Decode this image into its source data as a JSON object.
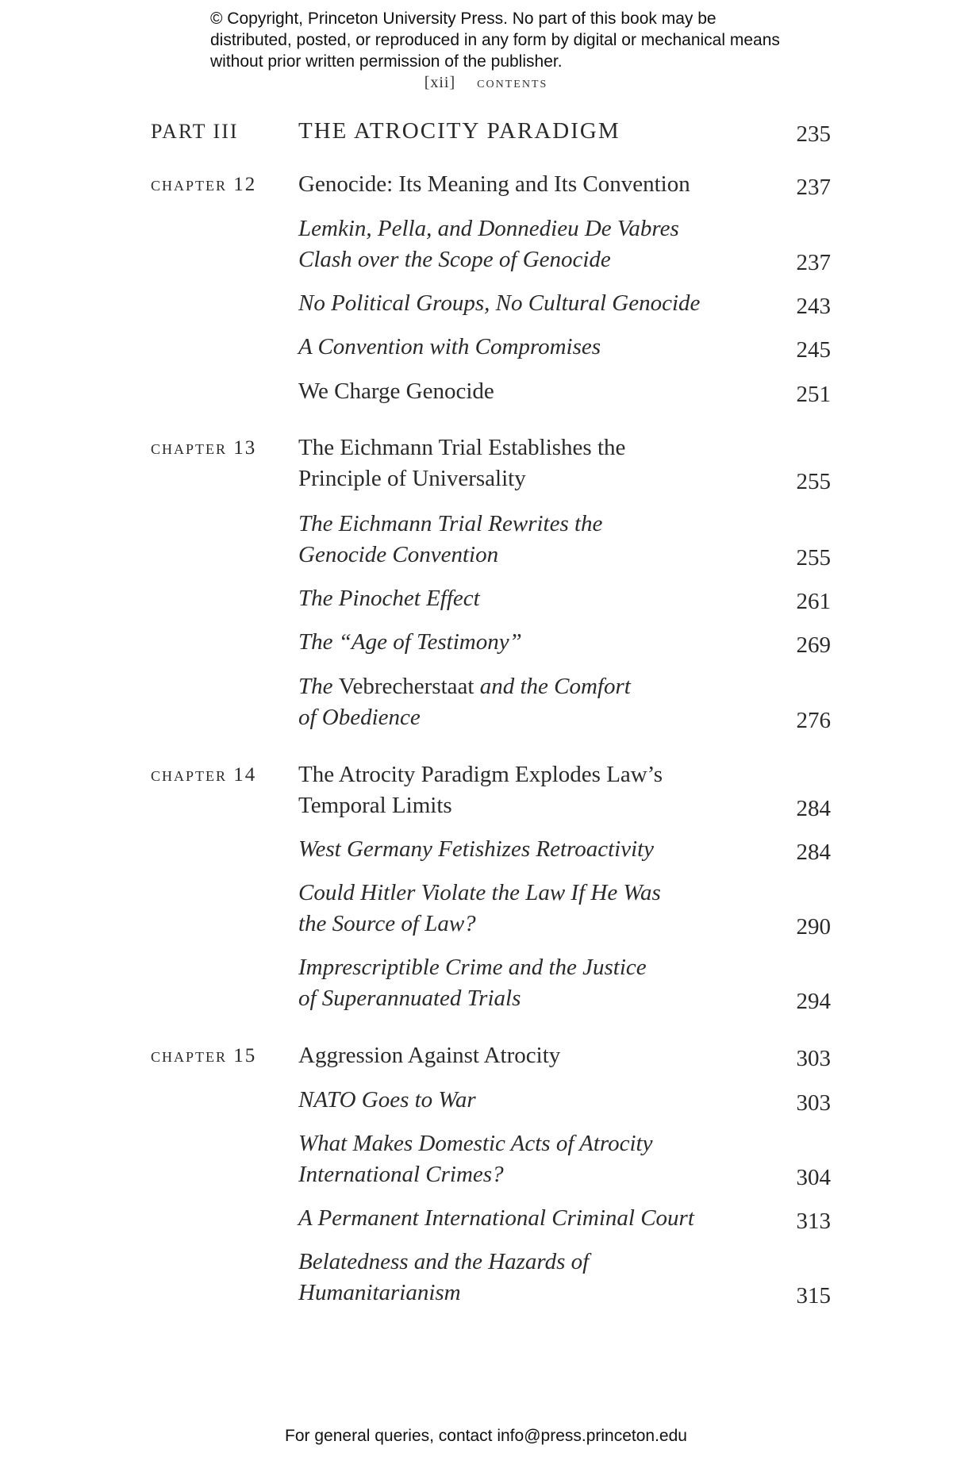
{
  "notice": "© Copyright, Princeton University Press. No part of this book may be distributed, posted, or reproduced in any form by digital or mechanical means without prior written permission of the publisher.",
  "running_head": {
    "folio": "[xii]",
    "title": "CONTENTS"
  },
  "entries": [
    {
      "label": "PART III",
      "kind": "part",
      "lines": [
        [
          {
            "text": "THE ATROCITY PARADIGM",
            "italic": false
          }
        ]
      ],
      "page": "235"
    },
    {
      "label": "Chapter 12",
      "kind": "chapter",
      "lines": [
        [
          {
            "text": "Genocide: Its Meaning and Its Convention",
            "italic": false
          }
        ]
      ],
      "page": "237"
    },
    {
      "kind": "section",
      "lines": [
        [
          {
            "text": "Lemkin, Pella, and Donnedieu De Vabres",
            "italic": true
          }
        ],
        [
          {
            "text": "Clash over the Scope of Genocide",
            "italic": true
          }
        ]
      ],
      "page": "237"
    },
    {
      "kind": "section",
      "lines": [
        [
          {
            "text": "No Political Groups, No Cultural Genocide",
            "italic": true
          }
        ]
      ],
      "page": "243"
    },
    {
      "kind": "section",
      "lines": [
        [
          {
            "text": "A Convention with Compromises",
            "italic": true
          }
        ]
      ],
      "page": "245"
    },
    {
      "kind": "section",
      "lines": [
        [
          {
            "text": "We Charge Genocide",
            "italic": false
          }
        ]
      ],
      "page": "251"
    },
    {
      "label": "Chapter 13",
      "kind": "chapter",
      "lines": [
        [
          {
            "text": "The Eichmann Trial Establishes the",
            "italic": false
          }
        ],
        [
          {
            "text": "Principle of Universality",
            "italic": false
          }
        ]
      ],
      "page": "255"
    },
    {
      "kind": "section",
      "lines": [
        [
          {
            "text": "The Eichmann Trial Rewrites the",
            "italic": true
          }
        ],
        [
          {
            "text": "Genocide Convention",
            "italic": true
          }
        ]
      ],
      "page": "255"
    },
    {
      "kind": "section",
      "lines": [
        [
          {
            "text": "The Pinochet Effect",
            "italic": true
          }
        ]
      ],
      "page": "261"
    },
    {
      "kind": "section",
      "lines": [
        [
          {
            "text": "The “Age of Testimony”",
            "italic": true
          }
        ]
      ],
      "page": "269"
    },
    {
      "kind": "section",
      "lines": [
        [
          {
            "text": "The ",
            "italic": true
          },
          {
            "text": "Vebrecherstaat",
            "italic": false
          },
          {
            "text": " and the Comfort",
            "italic": true
          }
        ],
        [
          {
            "text": "of Obedience",
            "italic": true
          }
        ]
      ],
      "page": "276"
    },
    {
      "label": "Chapter 14",
      "kind": "chapter",
      "lines": [
        [
          {
            "text": "The Atrocity Paradigm Explodes Law’s",
            "italic": false
          }
        ],
        [
          {
            "text": "Temporal Limits",
            "italic": false
          }
        ]
      ],
      "page": "284"
    },
    {
      "kind": "section",
      "lines": [
        [
          {
            "text": "West Germany Fetishizes Retroactivity",
            "italic": true
          }
        ]
      ],
      "page": "284"
    },
    {
      "kind": "section",
      "lines": [
        [
          {
            "text": "Could Hitler Violate the Law If He Was",
            "italic": true
          }
        ],
        [
          {
            "text": "the Source of Law?",
            "italic": true
          }
        ]
      ],
      "page": "290"
    },
    {
      "kind": "section",
      "lines": [
        [
          {
            "text": "Imprescriptible Crime and the Justice",
            "italic": true
          }
        ],
        [
          {
            "text": "of Superannuated Trials",
            "italic": true
          }
        ]
      ],
      "page": "294"
    },
    {
      "label": "Chapter 15",
      "kind": "chapter",
      "lines": [
        [
          {
            "text": "Aggression Against Atrocity",
            "italic": false
          }
        ]
      ],
      "page": "303"
    },
    {
      "kind": "section",
      "lines": [
        [
          {
            "text": "NATO Goes to War",
            "italic": true
          }
        ]
      ],
      "page": "303"
    },
    {
      "kind": "section",
      "lines": [
        [
          {
            "text": "What Makes Domestic Acts of Atrocity",
            "italic": true
          }
        ],
        [
          {
            "text": "International Crimes?",
            "italic": true
          }
        ]
      ],
      "page": "304"
    },
    {
      "kind": "section",
      "lines": [
        [
          {
            "text": "A Permanent International Criminal Court",
            "italic": true
          }
        ]
      ],
      "page": "313"
    },
    {
      "kind": "section",
      "lines": [
        [
          {
            "text": "Belatedness and the Hazards of",
            "italic": true
          }
        ],
        [
          {
            "text": "Humanitarianism",
            "italic": true
          }
        ]
      ],
      "page": "315"
    }
  ],
  "footer": "For general queries, contact info@press.princeton.edu"
}
